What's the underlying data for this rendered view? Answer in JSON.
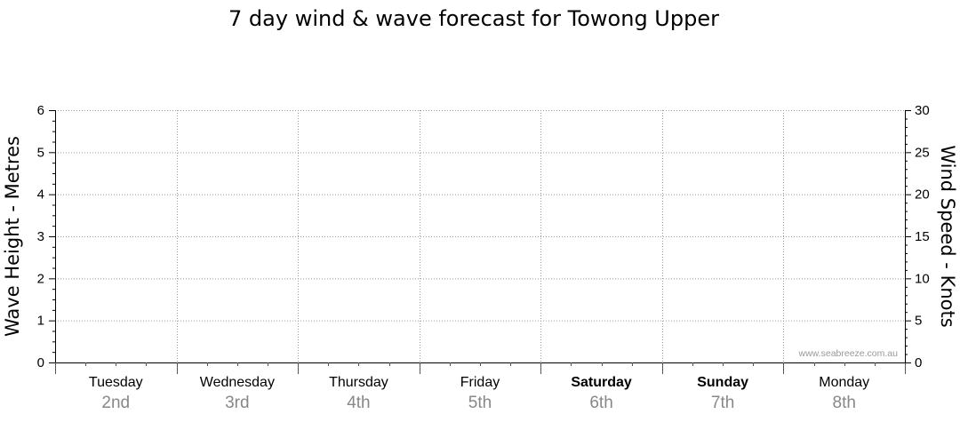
{
  "chart_data": {
    "type": "line",
    "title": "7 day wind & wave forecast for Towong Upper",
    "y_left": {
      "label": "Wave Height - Metres",
      "min": 0,
      "max": 6,
      "ticks": [
        0,
        1,
        2,
        3,
        4,
        5,
        6
      ]
    },
    "y_right": {
      "label": "Wind Speed - Knots",
      "min": 0,
      "max": 30,
      "ticks": [
        0,
        5,
        10,
        15,
        20,
        25,
        30
      ]
    },
    "days": [
      {
        "name": "Tuesday",
        "date": "2nd",
        "bold": false
      },
      {
        "name": "Wednesday",
        "date": "3rd",
        "bold": false
      },
      {
        "name": "Thursday",
        "date": "4th",
        "bold": false
      },
      {
        "name": "Friday",
        "date": "5th",
        "bold": false
      },
      {
        "name": "Saturday",
        "date": "6th",
        "bold": true
      },
      {
        "name": "Sunday",
        "date": "7th",
        "bold": true
      },
      {
        "name": "Monday",
        "date": "8th",
        "bold": false
      }
    ],
    "grid": true,
    "series": []
  },
  "watermark": "www.seabreeze.com.au"
}
